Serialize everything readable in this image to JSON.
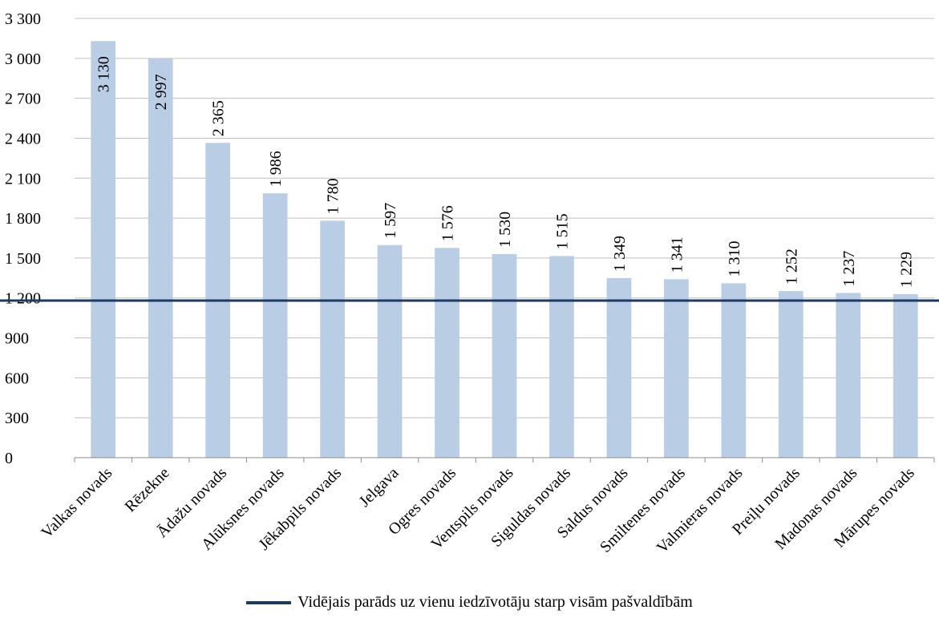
{
  "chart_data": {
    "type": "bar",
    "categories": [
      "Valkas novads",
      "Rēzekne",
      "Ādažu novads",
      "Alūksnes novads",
      "Jēkabpils novads",
      "Jelgava",
      "Ogres novads",
      "Ventspils novads",
      "Siguldas novads",
      "Saldus novads",
      "Smiltenes novads",
      "Valmieras novads",
      "Preiļu novads",
      "Madonas novads",
      "Mārupes novads"
    ],
    "values": [
      3130,
      2997,
      2365,
      1986,
      1780,
      1597,
      1576,
      1530,
      1515,
      1349,
      1341,
      1310,
      1252,
      1237,
      1229
    ],
    "data_labels": [
      "3 130",
      "2 997",
      "2 365",
      "1 986",
      "1 780",
      "1 597",
      "1 576",
      "1 530",
      "1 515",
      "1 349",
      "1 341",
      "1 310",
      "1 252",
      "1 237",
      "1 229"
    ],
    "ylim": [
      0,
      3300
    ],
    "yticks": [
      0,
      300,
      600,
      900,
      1200,
      1500,
      1800,
      2100,
      2400,
      2700,
      3000,
      3300
    ],
    "ytick_labels": [
      "0",
      "300",
      "600",
      "900",
      "1 200",
      "1 500",
      "1 800",
      "2 100",
      "2 400",
      "2 700",
      "3 000",
      "3 300"
    ],
    "grid": true,
    "reference_line": {
      "value": 1180,
      "name": "Vidējais parāds uz vienu iedzīvotāju starp visām pašvaldībām"
    },
    "legend_position": "bottom",
    "colors": {
      "bar": "#b9cde5",
      "reference_line": "#1f3a5f",
      "grid": "#bfbfbf"
    }
  }
}
